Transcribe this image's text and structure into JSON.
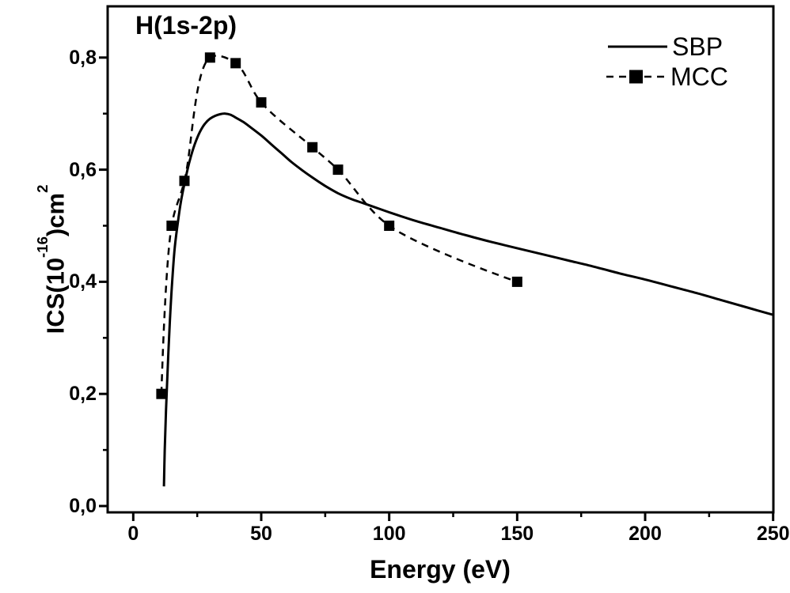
{
  "chart_data": {
    "type": "line",
    "title": "H(1s-2p)",
    "xlabel": "Energy (eV)",
    "ylabel": "ICS(10^-16)cm^2",
    "ylabel_parts": {
      "p1": "ICS(10",
      "sup1": "-16",
      "p2": ")cm",
      "sup2": "2"
    },
    "xlim": [
      -10,
      250.1
    ],
    "ylim": [
      -0.0113,
      0.8914
    ],
    "grid": false,
    "x_axis": {
      "major_ticks": [
        0,
        50,
        100,
        150,
        200,
        250
      ],
      "tick_labels": [
        "0",
        "50",
        "100",
        "150",
        "200",
        "250"
      ],
      "minor_ticks": [
        25,
        75,
        125,
        175,
        225
      ]
    },
    "y_axis": {
      "major_ticks": [
        0.0,
        0.2,
        0.4,
        0.6,
        0.8
      ],
      "tick_labels": [
        "0,0",
        "0,2",
        "0,4",
        "0,6",
        "0,8"
      ],
      "minor_ticks": [
        0.1,
        0.3,
        0.5,
        0.7
      ]
    },
    "legend": {
      "position": "top-right",
      "entries": [
        {
          "label": "SBP",
          "line": "solid",
          "marker": null
        },
        {
          "label": "MCC",
          "line": "dashed",
          "marker": "filled-square"
        }
      ]
    },
    "colors": {
      "foreground": "#000000",
      "background": "#ffffff"
    },
    "series": [
      {
        "name": "SBP",
        "line": "solid",
        "marker": null,
        "points": [
          [
            12,
            0.035
          ],
          [
            12.3,
            0.1
          ],
          [
            12.8,
            0.17
          ],
          [
            13.5,
            0.25
          ],
          [
            14.3,
            0.33
          ],
          [
            15.2,
            0.4
          ],
          [
            16.2,
            0.46
          ],
          [
            17.4,
            0.505
          ],
          [
            18.7,
            0.545
          ],
          [
            20,
            0.575
          ],
          [
            22,
            0.615
          ],
          [
            24,
            0.645
          ],
          [
            26,
            0.667
          ],
          [
            28,
            0.682
          ],
          [
            30,
            0.691
          ],
          [
            32,
            0.696
          ],
          [
            34,
            0.699
          ],
          [
            36,
            0.7
          ],
          [
            38,
            0.698
          ],
          [
            40,
            0.693
          ],
          [
            43,
            0.685
          ],
          [
            46,
            0.675
          ],
          [
            50,
            0.661
          ],
          [
            54,
            0.645
          ],
          [
            58,
            0.629
          ],
          [
            62,
            0.613
          ],
          [
            66,
            0.599
          ],
          [
            70,
            0.586
          ],
          [
            75,
            0.571
          ],
          [
            80,
            0.558
          ],
          [
            85,
            0.548
          ],
          [
            90,
            0.54
          ],
          [
            95,
            0.532
          ],
          [
            100,
            0.524
          ],
          [
            110,
            0.509
          ],
          [
            120,
            0.496
          ],
          [
            130,
            0.483
          ],
          [
            140,
            0.471
          ],
          [
            150,
            0.46
          ],
          [
            160,
            0.449
          ],
          [
            170,
            0.438
          ],
          [
            180,
            0.427
          ],
          [
            190,
            0.415
          ],
          [
            200,
            0.404
          ],
          [
            210,
            0.392
          ],
          [
            220,
            0.38
          ],
          [
            230,
            0.367
          ],
          [
            240,
            0.354
          ],
          [
            250,
            0.341
          ]
        ]
      },
      {
        "name": "MCC",
        "line": "dashed",
        "marker": "filled-square",
        "marker_size": 13,
        "points": [
          [
            11,
            0.2
          ],
          [
            15,
            0.5
          ],
          [
            20,
            0.58
          ],
          [
            30,
            0.8
          ],
          [
            40,
            0.79
          ],
          [
            50,
            0.72
          ],
          [
            70,
            0.64
          ],
          [
            80,
            0.6
          ],
          [
            100,
            0.5
          ],
          [
            150,
            0.4
          ]
        ]
      }
    ]
  }
}
